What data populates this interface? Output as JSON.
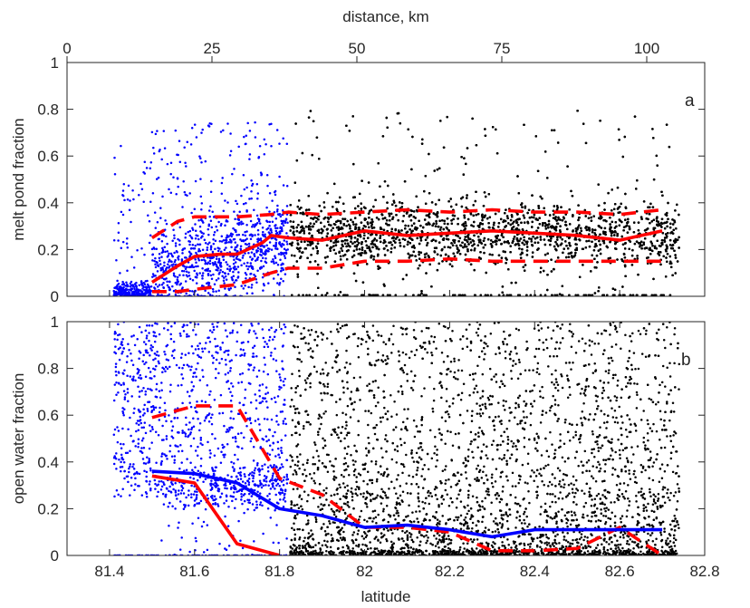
{
  "chart_data": [
    {
      "type": "scatter",
      "panel_letter": "a",
      "ylabel": "melt pond fraction",
      "top_xlabel": "distance, km",
      "top_xlim": [
        0,
        110
      ],
      "top_ticks": [
        "0",
        "25",
        "50",
        "75",
        "100"
      ],
      "top_tick_values": [
        0,
        25,
        50,
        75,
        100
      ],
      "xlim": [
        81.3,
        82.8
      ],
      "ylim": [
        0,
        1
      ],
      "yticks": [
        "0",
        "0.2",
        "0.4",
        "0.6",
        "0.8",
        "1"
      ],
      "ytick_values": [
        0,
        0.2,
        0.4,
        0.6,
        0.8,
        1
      ],
      "colors": {
        "blue_points": "#0000ff",
        "black_points": "#000000",
        "lines": "#ff0000"
      },
      "series": [
        {
          "style": "red-solid",
          "x": [
            81.5,
            81.56,
            81.6,
            81.66,
            81.7,
            81.76,
            81.78,
            81.82,
            81.9,
            82.0,
            82.1,
            82.2,
            82.3,
            82.4,
            82.5,
            82.6,
            82.7
          ],
          "values": [
            0.06,
            0.13,
            0.17,
            0.18,
            0.18,
            0.23,
            0.26,
            0.25,
            0.24,
            0.28,
            0.26,
            0.27,
            0.28,
            0.27,
            0.26,
            0.24,
            0.28
          ]
        },
        {
          "style": "red-dashed",
          "x": [
            81.5,
            81.56,
            81.6,
            81.7,
            81.78,
            81.82,
            81.9,
            82.0,
            82.1,
            82.2,
            82.3,
            82.4,
            82.5,
            82.6,
            82.7
          ],
          "values": [
            0.25,
            0.32,
            0.34,
            0.34,
            0.35,
            0.36,
            0.35,
            0.36,
            0.37,
            0.36,
            0.37,
            0.36,
            0.36,
            0.35,
            0.37
          ]
        },
        {
          "style": "red-dashed",
          "x": [
            81.5,
            81.56,
            81.6,
            81.7,
            81.78,
            81.82,
            81.9,
            82.0,
            82.1,
            82.2,
            82.3,
            82.4,
            82.5,
            82.6,
            82.7
          ],
          "values": [
            0.02,
            0.02,
            0.03,
            0.05,
            0.1,
            0.12,
            0.12,
            0.15,
            0.15,
            0.16,
            0.15,
            0.15,
            0.15,
            0.15,
            0.15
          ]
        }
      ]
    },
    {
      "type": "scatter",
      "panel_letter": "b",
      "xlabel": "latitude",
      "ylabel": "open water fraction",
      "xlim": [
        81.3,
        82.8
      ],
      "xticks": [
        "81.4",
        "81.6",
        "81.8",
        "82",
        "82.2",
        "82.4",
        "82.6",
        "82.8"
      ],
      "xtick_values": [
        81.4,
        81.6,
        81.8,
        82.0,
        82.2,
        82.4,
        82.6,
        82.8
      ],
      "ylim": [
        0,
        1
      ],
      "yticks": [
        "0",
        "0.2",
        "0.4",
        "0.6",
        "0.8",
        "1"
      ],
      "ytick_values": [
        0,
        0.2,
        0.4,
        0.6,
        0.8,
        1
      ],
      "colors": {
        "blue_points": "#0000ff",
        "black_points": "#000000",
        "red_lines": "#ff0000",
        "blue_line": "#0000ff"
      },
      "series": [
        {
          "style": "blue-solid",
          "x": [
            81.5,
            81.6,
            81.7,
            81.8,
            81.9,
            82.0,
            82.1,
            82.2,
            82.3,
            82.4,
            82.5,
            82.6,
            82.7
          ],
          "values": [
            0.36,
            0.35,
            0.31,
            0.2,
            0.17,
            0.12,
            0.13,
            0.11,
            0.08,
            0.11,
            0.11,
            0.11,
            0.11
          ]
        },
        {
          "style": "red-solid",
          "x": [
            81.5,
            81.6,
            81.7,
            81.8
          ],
          "values": [
            0.34,
            0.31,
            0.05,
            0.0
          ]
        },
        {
          "style": "red-dashed",
          "x": [
            81.5,
            81.6,
            81.7,
            81.8,
            81.9,
            82.0,
            82.1,
            82.2,
            82.3,
            82.4,
            82.5,
            82.6,
            82.7
          ],
          "values": [
            0.59,
            0.64,
            0.64,
            0.33,
            0.26,
            0.12,
            0.12,
            0.1,
            0.02,
            0.02,
            0.03,
            0.12,
            0.0
          ]
        }
      ]
    }
  ]
}
